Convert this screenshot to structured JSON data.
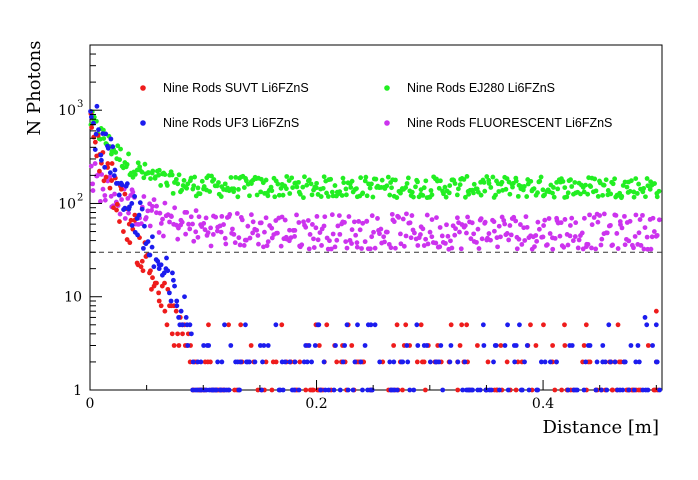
{
  "chart_data": {
    "type": "scatter",
    "title": "",
    "xlabel": "Distance [m]",
    "ylabel": "N Photons",
    "xlim": [
      0,
      0.505
    ],
    "ylim": [
      1,
      5000
    ],
    "yscale": "log",
    "x_ticks": [
      {
        "value": 0,
        "label": "0"
      },
      {
        "value": 0.2,
        "label": "0.2"
      },
      {
        "value": 0.4,
        "label": "0.4"
      }
    ],
    "y_ticks": [
      {
        "value": 1,
        "label": "1"
      },
      {
        "value": 10,
        "label": "10"
      },
      {
        "value": 100,
        "label": "10",
        "exp": "2"
      },
      {
        "value": 1000,
        "label": "10",
        "exp": "3"
      }
    ],
    "reference_line": {
      "y": 30,
      "style": "dashed"
    },
    "legend_placement": "top",
    "series": [
      {
        "name": "Nine Rods SUVT Li6FZnS",
        "color": "#ee1c1c",
        "model": {
          "start": 600,
          "end": 1,
          "decay": 0.015,
          "floor": 1,
          "noise": 0.25,
          "quantize": true,
          "tail": [
            [
              0.44,
              2
            ],
            [
              0.46,
              2
            ],
            [
              0.5,
              7
            ],
            [
              0.5,
              2
            ]
          ]
        }
      },
      {
        "name": "Nine Rods UF3 Li6FZnS",
        "color": "#1c1cee",
        "model": {
          "start": 900,
          "end": 1,
          "decay": 0.016,
          "floor": 1,
          "noise": 0.28,
          "quantize": true,
          "tail": [
            [
              0.44,
              3
            ],
            [
              0.455,
              2
            ],
            [
              0.49,
              6
            ],
            [
              0.5,
              2
            ]
          ]
        }
      },
      {
        "name": "Nine Rods EJ280 Li6FZnS",
        "color": "#22ee22",
        "model": {
          "start": 800,
          "end": 155,
          "decay": 0.02,
          "floor": 150,
          "noise": 0.12,
          "quantize": false
        }
      },
      {
        "name": "Nine Rods FLUORESCENT Li6FZnS",
        "color": "#cc33ee",
        "model": {
          "start": 200,
          "end": 55,
          "decay": 0.03,
          "floor": 50,
          "noise": 0.2,
          "quantize": false
        }
      }
    ]
  }
}
